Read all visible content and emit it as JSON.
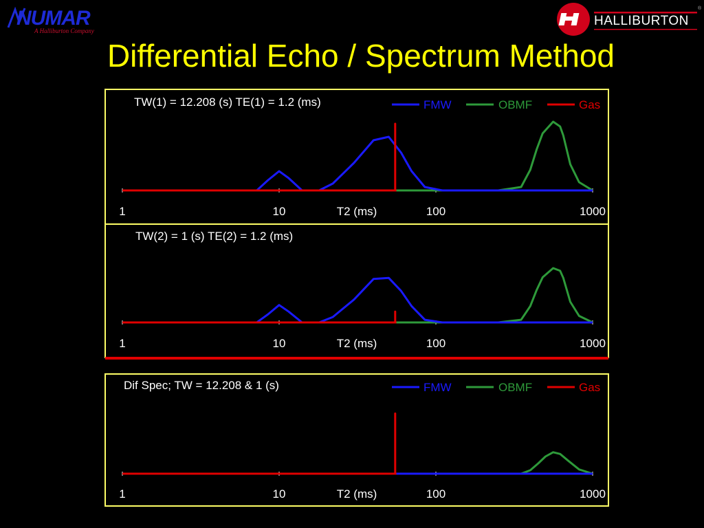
{
  "slide": {
    "title": "Differential Echo / Spectrum Method",
    "logo_left": {
      "name": "NUMAR",
      "tagline": "A Halliburton Company"
    },
    "logo_right": {
      "name": "HALLIBURTON"
    }
  },
  "colors": {
    "background": "#000000",
    "frame": "#ffff66",
    "title": "#ffff00",
    "FMW": "#1a1aff",
    "OBMF": "#2e9a3a",
    "Gas": "#e00000",
    "tick_labels": "#ffffff"
  },
  "chart_data": [
    {
      "type": "line",
      "annotation": "TW(1) = 12.208 (s)  TE(1) = 1.2 (ms)",
      "xlabel": "T2 (ms)",
      "xscale": "log",
      "xlim": [
        1,
        1000
      ],
      "xticks": [
        "1",
        "10",
        "100",
        "1000"
      ],
      "legend": [
        "FMW",
        "OBMF",
        "Gas"
      ],
      "legend_position": "top-right",
      "series": [
        {
          "name": "FMW",
          "x": [
            1,
            7.2,
            8.5,
            10,
            11.5,
            14,
            18,
            22,
            30,
            40,
            50,
            60,
            70,
            85,
            110,
            150,
            200,
            1000
          ],
          "y": [
            0,
            0,
            0.15,
            0.28,
            0.18,
            0,
            0,
            0.1,
            0.4,
            0.73,
            0.78,
            0.55,
            0.28,
            0.05,
            0,
            0,
            0,
            0
          ]
        },
        {
          "name": "OBMF",
          "x": [
            1,
            55,
            250,
            350,
            400,
            440,
            480,
            560,
            620,
            650,
            720,
            820,
            1000
          ],
          "y": [
            0,
            0,
            0,
            0.05,
            0.3,
            0.6,
            0.83,
            1.0,
            0.93,
            0.8,
            0.38,
            0.12,
            0
          ]
        },
        {
          "name": "Gas",
          "x": [
            1,
            55,
            55,
            55,
            56
          ],
          "y": [
            0,
            0,
            0.97,
            0,
            0
          ]
        }
      ]
    },
    {
      "type": "line",
      "annotation": "TW(2) = 1 (s)  TE(2) = 1.2 (ms)",
      "xlabel": "T2 (ms)",
      "xscale": "log",
      "xlim": [
        1,
        1000
      ],
      "xticks": [
        "1",
        "10",
        "100",
        "1000"
      ],
      "series": [
        {
          "name": "FMW",
          "x": [
            1,
            7.2,
            8.5,
            10,
            11.5,
            14,
            18,
            22,
            30,
            40,
            50,
            60,
            70,
            85,
            110,
            150,
            200,
            1000
          ],
          "y": [
            0,
            0,
            0.15,
            0.32,
            0.2,
            0,
            0,
            0.1,
            0.42,
            0.8,
            0.82,
            0.58,
            0.3,
            0.05,
            0,
            0,
            0,
            0
          ]
        },
        {
          "name": "OBMF",
          "x": [
            1,
            55,
            250,
            350,
            400,
            440,
            480,
            560,
            620,
            650,
            720,
            820,
            1000
          ],
          "y": [
            0,
            0,
            0,
            0.05,
            0.3,
            0.6,
            0.83,
            1.0,
            0.95,
            0.82,
            0.38,
            0.12,
            0
          ]
        },
        {
          "name": "Gas",
          "x": [
            1,
            55,
            55,
            55,
            56
          ],
          "y": [
            0,
            0,
            0.2,
            0,
            0
          ]
        }
      ]
    },
    {
      "type": "line",
      "annotation": "Dif Spec; TW = 12.208 & 1 (s)",
      "xlabel": "T2 (ms)",
      "xscale": "log",
      "xlim": [
        1,
        1000
      ],
      "xticks": [
        "1",
        "10",
        "100",
        "1000"
      ],
      "legend": [
        "FMW",
        "OBMF",
        "Gas"
      ],
      "legend_position": "top-right",
      "series": [
        {
          "name": "FMW",
          "x": [
            1,
            1000
          ],
          "y": [
            0,
            0
          ]
        },
        {
          "name": "OBMF",
          "x": [
            1,
            55,
            350,
            400,
            450,
            500,
            560,
            620,
            700,
            820,
            1000
          ],
          "y": [
            0,
            0,
            0,
            0.04,
            0.12,
            0.2,
            0.25,
            0.23,
            0.15,
            0.05,
            0
          ]
        },
        {
          "name": "Gas",
          "x": [
            1,
            55,
            55,
            55,
            56
          ],
          "y": [
            0,
            0,
            0.7,
            0,
            0
          ]
        }
      ]
    }
  ]
}
